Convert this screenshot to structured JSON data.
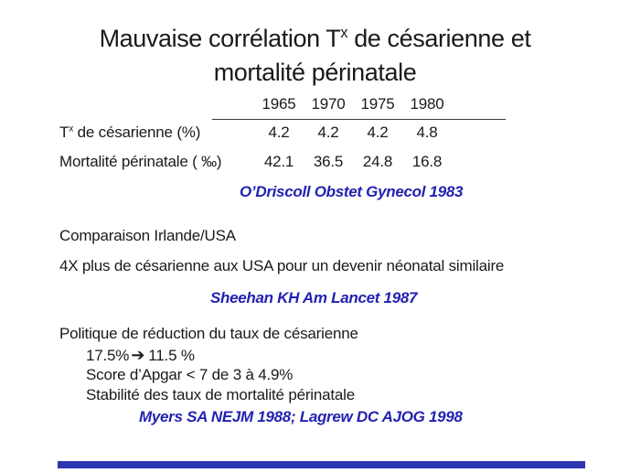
{
  "slide": {
    "title": {
      "line1_pre": "Mauvaise corrélation T",
      "line1_sup": "x",
      "line1_post": " de césarienne et",
      "line2": "mortalité périnatale"
    },
    "table": {
      "years": [
        "1965",
        "1970",
        "1975",
        "1980"
      ],
      "rows": [
        {
          "label_pre": "T",
          "label_sup": "x",
          "label_post": " de césarienne (%)",
          "values": [
            "4.2",
            "4.2",
            "4.2",
            "4.8"
          ]
        },
        {
          "label": "Mortalité périnatale ( ‰)",
          "values": [
            "42.1",
            "36.5",
            "24.8",
            "16.8"
          ]
        }
      ],
      "citation": "O’Driscoll Obstet Gynecol 1983"
    },
    "comparison": {
      "line1": "Comparaison Irlande/USA",
      "line2": "4X plus de césarienne aux USA pour un devenir néonatal similaire",
      "citation": "Sheehan KH Am Lancet 1987"
    },
    "policy": {
      "heading": "Politique de réduction du taux de césarienne",
      "rate_from": "17.5%",
      "rate_arrow": "➔",
      "rate_to": "11.5 %",
      "apgar_line": "Score d’Apgar < 7 de 3 à 4.9%",
      "stability_line": "Stabilité des taux de mortalité périnatale",
      "citation": "Myers SA NEJM 1988; Lagrew DC AJOG 1998"
    },
    "colors": {
      "citation_blue": "#2222b2",
      "footer_bar_blue": "#2e35b0"
    }
  }
}
